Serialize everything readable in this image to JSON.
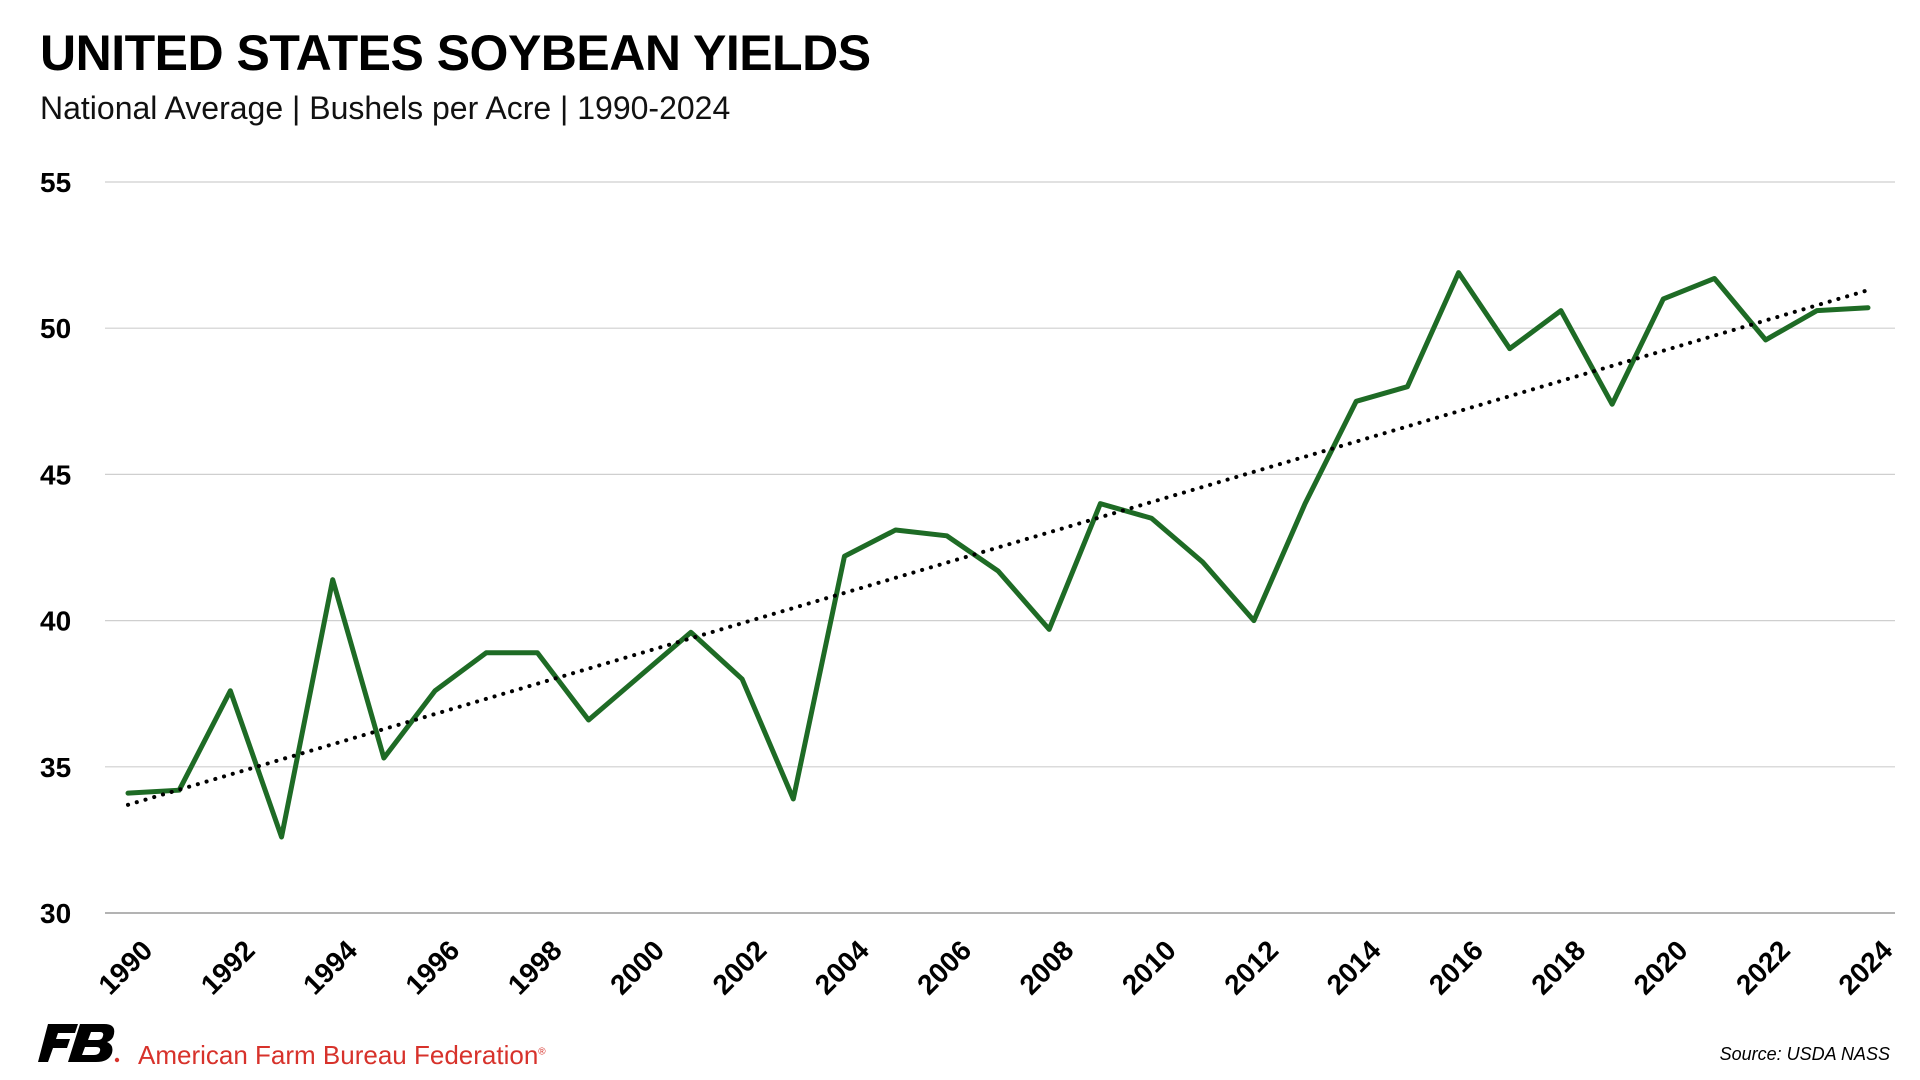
{
  "header": {
    "title": "UNITED STATES SOYBEAN YIELDS",
    "subtitle": "National Average | Bushels per Acre | 1990-2024"
  },
  "footer": {
    "organization": "American Farm Bureau Federation",
    "registered_mark": "®",
    "source": "Source: USDA NASS",
    "logo_icon": "fb-logo-icon",
    "brand_color": "#d7322b"
  },
  "chart_data": {
    "type": "line",
    "title": "UNITED STATES SOYBEAN YIELDS",
    "subtitle": "National Average | Bushels per Acre | 1990-2024",
    "xlabel": "",
    "ylabel": "",
    "ylim": [
      30,
      55
    ],
    "yticks": [
      30,
      35,
      40,
      45,
      50,
      55
    ],
    "xlim": [
      1990,
      2024
    ],
    "xticks": [
      1990,
      1992,
      1994,
      1996,
      1998,
      2000,
      2002,
      2004,
      2006,
      2008,
      2010,
      2012,
      2014,
      2016,
      2018,
      2020,
      2022,
      2024
    ],
    "grid": "horizontal",
    "legend": "none",
    "x": [
      1990,
      1991,
      1992,
      1993,
      1994,
      1995,
      1996,
      1997,
      1998,
      1999,
      2000,
      2001,
      2002,
      2003,
      2004,
      2005,
      2006,
      2007,
      2008,
      2009,
      2010,
      2011,
      2012,
      2013,
      2014,
      2015,
      2016,
      2017,
      2018,
      2019,
      2020,
      2021,
      2022,
      2023,
      2024
    ],
    "series": [
      {
        "style": "solid",
        "color": "#1e6b25",
        "values": [
          34.1,
          34.2,
          37.6,
          32.6,
          41.4,
          35.3,
          37.6,
          38.9,
          38.9,
          36.6,
          38.1,
          39.6,
          38.0,
          33.9,
          42.2,
          43.1,
          42.9,
          41.7,
          39.7,
          44.0,
          43.5,
          42.0,
          40.0,
          44.0,
          47.5,
          48.0,
          51.9,
          49.3,
          50.6,
          47.4,
          51.0,
          51.7,
          49.6,
          50.6,
          50.7
        ]
      },
      {
        "style": "dotted",
        "color": "#000000",
        "trendline": true,
        "x": [
          1990,
          2024
        ],
        "values": [
          33.7,
          51.3
        ]
      }
    ]
  }
}
